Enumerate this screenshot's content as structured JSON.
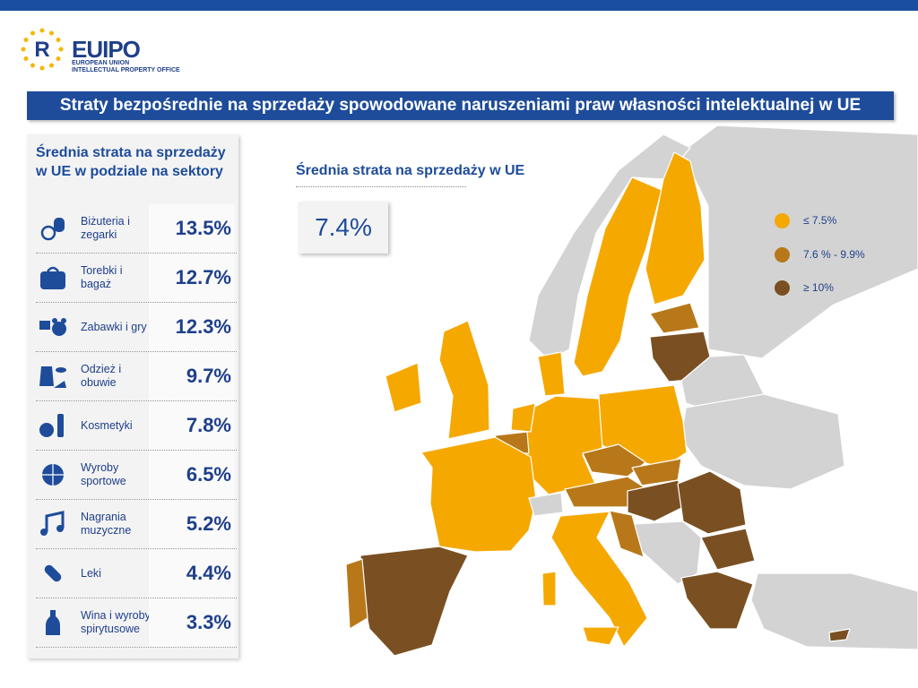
{
  "header": {
    "logo": "EUIPO",
    "logo_line1": "EUROPEAN UNION",
    "logo_line2": "INTELLECTUAL PROPERTY OFFICE",
    "title": "Straty bezpośrednie na sprzedaży spowodowane naruszeniami praw własności intelektualnej w UE"
  },
  "sidebar": {
    "title": "Średnia strata na sprzedaży w UE w podziale na sektory",
    "rows": [
      {
        "label": "Biżuteria i zegarki",
        "value": "13.5%"
      },
      {
        "label": "Torebki i bagaż",
        "value": "12.7%"
      },
      {
        "label": "Zabawki i gry",
        "value": "12.3%"
      },
      {
        "label": "Odzież i obuwie",
        "value": "9.7%"
      },
      {
        "label": "Kosmetyki",
        "value": "7.8%"
      },
      {
        "label": "Wyroby sportowe",
        "value": "6.5%"
      },
      {
        "label": "Nagrania muzyczne",
        "value": "5.2%"
      },
      {
        "label": "Leki",
        "value": "4.4%"
      },
      {
        "label": "Wina i wyroby spirytusowe",
        "value": "3.3%"
      }
    ]
  },
  "summary": {
    "title": "Średnia strata na sprzedaży w UE",
    "value": "7.4%"
  },
  "legend": [
    {
      "label": "≤ 7.5%",
      "color": "#f5a800"
    },
    {
      "label": "7.6 % - 9.9%",
      "color": "#b8781a"
    },
    {
      "label": "≥ 10%",
      "color": "#7a5022"
    }
  ]
}
